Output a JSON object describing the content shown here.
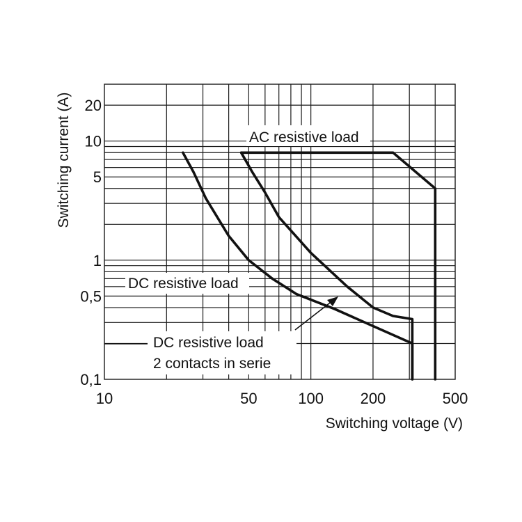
{
  "chart_data": {
    "type": "line",
    "title": "",
    "xlabel": "Switching voltage (V)",
    "ylabel": "Switching current (A)",
    "x_scale": "log",
    "y_scale": "log",
    "xlim": [
      10,
      500
    ],
    "ylim": [
      0.1,
      30
    ],
    "grid": true,
    "x_ticks": [
      {
        "value": 10,
        "label": "10"
      },
      {
        "value": 50,
        "label": "50"
      },
      {
        "value": 100,
        "label": "100"
      },
      {
        "value": 200,
        "label": "200"
      },
      {
        "value": 500,
        "label": "500"
      }
    ],
    "y_ticks": [
      {
        "value": 0.1,
        "label": "0,1"
      },
      {
        "value": 0.5,
        "label": "0,5"
      },
      {
        "value": 1,
        "label": "1"
      },
      {
        "value": 5,
        "label": "5"
      },
      {
        "value": 10,
        "label": "10"
      },
      {
        "value": 20,
        "label": "20"
      }
    ],
    "series": [
      {
        "name": "AC resistive load",
        "points": [
          [
            46,
            8
          ],
          [
            250,
            8
          ],
          [
            400,
            4
          ],
          [
            400,
            0.1
          ]
        ]
      },
      {
        "name": "DC resistive load",
        "points": [
          [
            24,
            8
          ],
          [
            27,
            5.5
          ],
          [
            31,
            3.3
          ],
          [
            40,
            1.6
          ],
          [
            50,
            1.0
          ],
          [
            65,
            0.7
          ],
          [
            85,
            0.52
          ],
          [
            130,
            0.39
          ],
          [
            200,
            0.28
          ],
          [
            310,
            0.2
          ],
          [
            310,
            0.1
          ]
        ]
      },
      {
        "name": "DC resistive load 2 contacts in serie",
        "points": [
          [
            46,
            8
          ],
          [
            52,
            5.5
          ],
          [
            60,
            3.7
          ],
          [
            70,
            2.3
          ],
          [
            100,
            1.15
          ],
          [
            150,
            0.6
          ],
          [
            200,
            0.4
          ],
          [
            250,
            0.34
          ],
          [
            310,
            0.32
          ],
          [
            310,
            0.1
          ]
        ]
      }
    ],
    "annotations": [
      {
        "text": "AC resistive load"
      },
      {
        "text": "DC resistive load"
      },
      {
        "lines": [
          "DC resistive load",
          "2 contacts in serie"
        ]
      }
    ]
  }
}
